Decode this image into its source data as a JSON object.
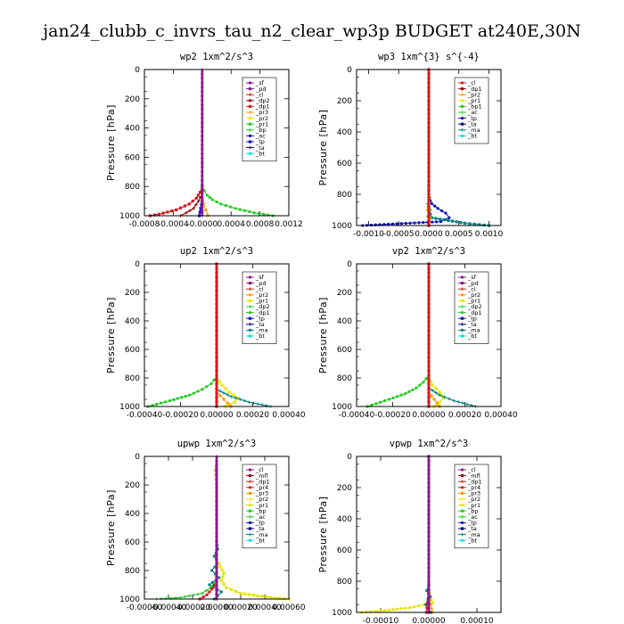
{
  "figure_title": "jan24_clubb_c_invrs_tau_n2_clear_wp3p  BUDGET at240E,30N",
  "colors": {
    "red": "#d7191c",
    "darkred": "#990000",
    "purple": "#8b1a8b",
    "magenta": "#b03080",
    "orange": "#ff9a00",
    "yellow": "#e6e600",
    "green": "#22cc22",
    "blue": "#1010bb",
    "teal": "#008080",
    "cyan": "#00dddd",
    "navy": "#000080",
    "gray": "#333333"
  },
  "chart_data": [
    {
      "type": "line",
      "title": "wp2   1xm^2/s^3",
      "ylabel": "Pressure [hPa]",
      "ylim": [
        1000,
        0
      ],
      "xlim": [
        -0.0008,
        0.0012
      ],
      "xticks": [
        -0.0008,
        -0.0004,
        0.0,
        0.0004,
        0.0008,
        0.0012
      ],
      "xticklabels": [
        "-0.0008",
        "-0.0004",
        "-0.0000",
        "0.0004",
        "0.0008",
        "0.0012"
      ],
      "yticks": [
        0,
        200,
        400,
        600,
        800,
        1000
      ],
      "legend": [
        "_sf",
        "_pd",
        "_cl",
        "_dp2",
        "_dp1",
        "_pr3",
        "_pr2",
        "_pr1",
        "_bp",
        "_ac",
        "_tp",
        "_ta",
        "_bt"
      ],
      "legend_colors": [
        "purple",
        "purple",
        "red",
        "darkred",
        "red",
        "orange",
        "yellow",
        "green",
        "green",
        "blue",
        "blue",
        "navy",
        "cyan"
      ],
      "series": [
        {
          "color": "green",
          "pressure": [
            800,
            830,
            860,
            890,
            920,
            950,
            980,
            1000
          ],
          "values": [
            0,
            3e-05,
            7e-05,
            0.00014,
            0.00026,
            0.00046,
            0.00072,
            0.00098
          ]
        },
        {
          "color": "red",
          "pressure": [
            800,
            840,
            880,
            920,
            960,
            990,
            1000
          ],
          "values": [
            0,
            -3e-05,
            -8e-05,
            -0.00018,
            -0.00036,
            -0.0006,
            -0.00072
          ]
        },
        {
          "color": "darkred",
          "pressure": [
            850,
            900,
            950,
            980,
            1000
          ],
          "values": [
            0,
            -5e-05,
            -0.00012,
            -0.00022,
            -0.0003
          ]
        },
        {
          "color": "orange",
          "pressure": [
            880,
            920,
            960,
            1000
          ],
          "values": [
            0,
            2e-05,
            5e-05,
            8e-05
          ]
        },
        {
          "color": "blue",
          "pressure": [
            900,
            950,
            1000
          ],
          "values": [
            0,
            -2e-05,
            -4e-05
          ]
        },
        {
          "color": "purple",
          "pressure": [
            0,
            1000
          ],
          "values": [
            0,
            0
          ]
        }
      ]
    },
    {
      "type": "line",
      "title": "wp3   1xm^{3} s^{-4}",
      "ylabel": "Pressure [hPa]",
      "ylim": [
        1000,
        0
      ],
      "xlim": [
        -0.0012,
        0.0012
      ],
      "xticks": [
        -0.001,
        -0.0005,
        0.0,
        0.0005,
        0.001
      ],
      "xticklabels": [
        "-0.0010",
        "-0.0005",
        "0.0000",
        "0.0005",
        "0.0010"
      ],
      "yticks": [
        0,
        200,
        400,
        600,
        800,
        1000
      ],
      "legend": [
        "_cl",
        "_dp1",
        "_pr2",
        "_pr1",
        "_bp1",
        "_ac",
        "_tp",
        "_ta",
        "_ma",
        "_bt"
      ],
      "legend_colors": [
        "red",
        "darkred",
        "orange",
        "yellow",
        "green",
        "green",
        "blue",
        "navy",
        "teal",
        "cyan"
      ],
      "series": [
        {
          "color": "blue",
          "pressure": [
            820,
            860,
            890,
            920,
            950,
            975,
            990,
            1000
          ],
          "values": [
            0,
            5e-05,
            0.00015,
            0.00028,
            0.00034,
            0.0002,
            -0.0006,
            -0.0011
          ]
        },
        {
          "color": "teal",
          "pressure": [
            900,
            950,
            985,
            1000
          ],
          "values": [
            0,
            5e-05,
            0.0006,
            0.001
          ]
        },
        {
          "color": "green",
          "pressure": [
            780,
            820,
            860,
            900,
            940,
            980,
            1000
          ],
          "values": [
            0,
            2e-05,
            -2e-05,
            3e-05,
            -2e-05,
            1e-05,
            0
          ]
        },
        {
          "color": "orange",
          "pressure": [
            850,
            900,
            950,
            1000
          ],
          "values": [
            0,
            -2e-05,
            2e-05,
            0
          ]
        },
        {
          "color": "red",
          "pressure": [
            0,
            1000
          ],
          "values": [
            0,
            0
          ]
        }
      ]
    },
    {
      "type": "line",
      "title": "up2   1xm^2/s^3",
      "ylabel": "Pressure [hPa]",
      "ylim": [
        1000,
        0
      ],
      "xlim": [
        -0.0004,
        0.0004
      ],
      "xticks": [
        -0.0004,
        -0.0002,
        0.0,
        0.0002,
        0.0004
      ],
      "xticklabels": [
        "-0.00040",
        "-0.00020",
        "0.00000",
        "0.00020",
        "0.00040"
      ],
      "yticks": [
        0,
        200,
        400,
        600,
        800,
        1000
      ],
      "legend": [
        "_sf",
        "_pd",
        "_cl",
        "_pr2",
        "_pr1",
        "_dp2",
        "_dp1",
        "_tp",
        "_ta",
        "_ma",
        "_bt"
      ],
      "legend_colors": [
        "purple",
        "purple",
        "red",
        "orange",
        "yellow",
        "green",
        "green",
        "blue",
        "navy",
        "teal",
        "cyan"
      ],
      "series": [
        {
          "color": "green",
          "pressure": [
            790,
            840,
            880,
            920,
            960,
            1000
          ],
          "values": [
            0,
            -3e-05,
            -8e-05,
            -0.00015,
            -0.00026,
            -0.00038
          ]
        },
        {
          "color": "yellow",
          "pressure": [
            800,
            850,
            900,
            940,
            970,
            1000
          ],
          "values": [
            0,
            3e-05,
            7e-05,
            0.00012,
            0.0001,
            5e-05
          ]
        },
        {
          "color": "teal",
          "pressure": [
            880,
            930,
            970,
            1000
          ],
          "values": [
            0,
            8e-05,
            0.00018,
            0.0003
          ]
        },
        {
          "color": "orange",
          "pressure": [
            900,
            950,
            1000
          ],
          "values": [
            0,
            4e-05,
            8e-05
          ]
        },
        {
          "color": "red",
          "pressure": [
            0,
            1000
          ],
          "values": [
            0,
            0
          ]
        }
      ]
    },
    {
      "type": "line",
      "title": "vp2   1xm^2/s^3",
      "ylabel": "Pressure [hPa]",
      "ylim": [
        1000,
        0
      ],
      "xlim": [
        -0.0004,
        0.0004
      ],
      "xticks": [
        -0.0004,
        -0.0002,
        0.0,
        0.0002,
        0.0004
      ],
      "xticklabels": [
        "-0.00040",
        "-0.00020",
        "0.00000",
        "0.00020",
        "0.00040"
      ],
      "yticks": [
        0,
        200,
        400,
        600,
        800,
        1000
      ],
      "legend": [
        "_sf",
        "_pd",
        "_cl",
        "_pr2",
        "_pr1",
        "_dp2",
        "_dp1",
        "_tp",
        "_ta",
        "_ma",
        "_bt"
      ],
      "legend_colors": [
        "purple",
        "purple",
        "red",
        "orange",
        "yellow",
        "green",
        "green",
        "blue",
        "navy",
        "teal",
        "cyan"
      ],
      "series": [
        {
          "color": "green",
          "pressure": [
            780,
            830,
            870,
            910,
            950,
            1000
          ],
          "values": [
            0,
            -3e-05,
            -7e-05,
            -0.00013,
            -0.00022,
            -0.00034
          ]
        },
        {
          "color": "yellow",
          "pressure": [
            800,
            850,
            900,
            940,
            970,
            1000
          ],
          "values": [
            0,
            2e-05,
            6e-05,
            8e-05,
            6e-05,
            3e-05
          ]
        },
        {
          "color": "teal",
          "pressure": [
            870,
            920,
            960,
            1000
          ],
          "values": [
            0,
            6e-05,
            0.00014,
            0.00026
          ]
        },
        {
          "color": "orange",
          "pressure": [
            900,
            950,
            1000
          ],
          "values": [
            0,
            3e-05,
            6e-05
          ]
        },
        {
          "color": "red",
          "pressure": [
            0,
            1000
          ],
          "values": [
            0,
            0
          ]
        }
      ]
    },
    {
      "type": "line",
      "title": "upwp   1xm^2/s^3",
      "ylabel": "Pressure [hPa]",
      "ylim": [
        1000,
        0
      ],
      "xlim": [
        -0.0006,
        0.0006
      ],
      "xticks": [
        -0.0006,
        -0.0004,
        -0.0002,
        0.0,
        0.0002,
        0.0004,
        0.0006
      ],
      "xticklabels": [
        "-0.00060",
        "-0.00040",
        "-0.00020",
        "0.00000",
        "0.00020",
        "0.00040",
        "0.00060"
      ],
      "yticks": [
        0,
        200,
        400,
        600,
        800,
        1000
      ],
      "legend": [
        "_cl",
        "_mfl",
        "_dp1",
        "_pr4",
        "_pr3",
        "_pr2",
        "_pr1",
        "_bp",
        "_ac",
        "_tp",
        "_ta",
        "_ma",
        "_bt"
      ],
      "legend_colors": [
        "purple",
        "darkred",
        "red",
        "red",
        "orange",
        "yellow",
        "yellow",
        "green",
        "green",
        "blue",
        "navy",
        "teal",
        "cyan"
      ],
      "series": [
        {
          "color": "teal",
          "pressure": [
            600,
            650,
            700,
            750,
            800,
            850,
            900,
            950,
            1000
          ],
          "values": [
            0,
            1e-05,
            -2e-05,
            1e-05,
            -4e-05,
            2e-05,
            -6e-05,
            4e-05,
            -2e-05
          ]
        },
        {
          "color": "yellow",
          "pressure": [
            720,
            770,
            820,
            870,
            920,
            960,
            990,
            1000
          ],
          "values": [
            0,
            3e-05,
            6e-05,
            4e-05,
            8e-05,
            0.0002,
            0.00045,
            0.0006
          ]
        },
        {
          "color": "green",
          "pressure": [
            870,
            920,
            960,
            990,
            1000
          ],
          "values": [
            0,
            -5e-05,
            -0.00012,
            -0.0003,
            -0.0005
          ]
        },
        {
          "color": "red",
          "pressure": [
            880,
            930,
            970,
            1000
          ],
          "values": [
            0,
            -4e-05,
            -8e-05,
            -0.00014
          ]
        },
        {
          "color": "orange",
          "pressure": [
            50,
            100,
            200,
            1000
          ],
          "values": [
            0,
            -8e-06,
            0,
            0
          ]
        },
        {
          "color": "purple",
          "pressure": [
            0,
            1000
          ],
          "values": [
            0,
            0
          ]
        }
      ]
    },
    {
      "type": "line",
      "title": "vpwp   1xm^2/s^3",
      "ylabel": "Pressure [hPa]",
      "ylim": [
        1000,
        0
      ],
      "xlim": [
        -0.00015,
        0.00015
      ],
      "xticks": [
        -0.0001,
        0.0,
        0.0001
      ],
      "xticklabels": [
        "-0.00010",
        "0.00000",
        "0.00010"
      ],
      "yticks": [
        0,
        200,
        400,
        600,
        800,
        1000
      ],
      "legend": [
        "_cl",
        "_mfl",
        "_dp1",
        "_pr4",
        "_pr3",
        "_pr2",
        "_pr1",
        "_bp",
        "_ac",
        "_tp",
        "_ta",
        "_ma",
        "_bt"
      ],
      "legend_colors": [
        "purple",
        "darkred",
        "red",
        "red",
        "orange",
        "yellow",
        "yellow",
        "green",
        "green",
        "blue",
        "navy",
        "teal",
        "cyan"
      ],
      "series": [
        {
          "color": "yellow",
          "pressure": [
            850,
            900,
            940,
            970,
            990,
            1000
          ],
          "values": [
            0,
            3e-06,
            8e-06,
            -4e-05,
            -0.0001,
            -0.00014
          ]
        },
        {
          "color": "teal",
          "pressure": [
            820,
            860,
            900,
            950,
            1000
          ],
          "values": [
            0,
            -4e-06,
            3e-06,
            -6e-06,
            4e-06
          ]
        },
        {
          "color": "orange",
          "pressure": [
            900,
            950,
            1000
          ],
          "values": [
            0,
            4e-06,
            8e-06
          ]
        },
        {
          "color": "red",
          "pressure": [
            880,
            940,
            1000
          ],
          "values": [
            0,
            -3e-06,
            -5e-06
          ]
        },
        {
          "color": "purple",
          "pressure": [
            0,
            1000
          ],
          "values": [
            0,
            0
          ]
        }
      ]
    }
  ]
}
